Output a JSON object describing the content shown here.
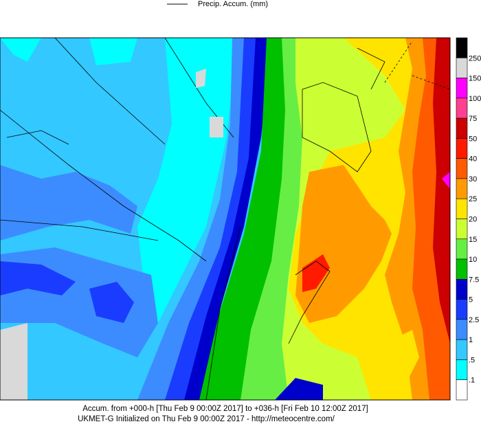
{
  "legend": {
    "title": "Precip. Accum. (mm)"
  },
  "colorbar": {
    "labels": [
      "250",
      "150",
      "100",
      "75",
      "50",
      "40",
      "30",
      "25",
      "20",
      "15",
      "10",
      "7.5",
      "5",
      "2.5",
      "1",
      ".5",
      ".1"
    ],
    "colors": [
      "#000000",
      "#d9d9d9",
      "#ff00ff",
      "#ff3f8f",
      "#cc0000",
      "#ff1a00",
      "#ff5a00",
      "#ff9b00",
      "#ffe400",
      "#ccff33",
      "#66ee44",
      "#00c000",
      "#0000cc",
      "#1a3cff",
      "#3c8cff",
      "#33c8ff",
      "#00ffff",
      "#ffffff"
    ]
  },
  "footer": {
    "line1": "Accum. from +000-h [Thu Feb 9 00:00Z 2017] to +036-h [Fri Feb 10 12:00Z 2017]",
    "line2": "UKMET-G Initialized on Thu Feb 9 00:00Z 2017 - http://meteocentre.com/"
  }
}
